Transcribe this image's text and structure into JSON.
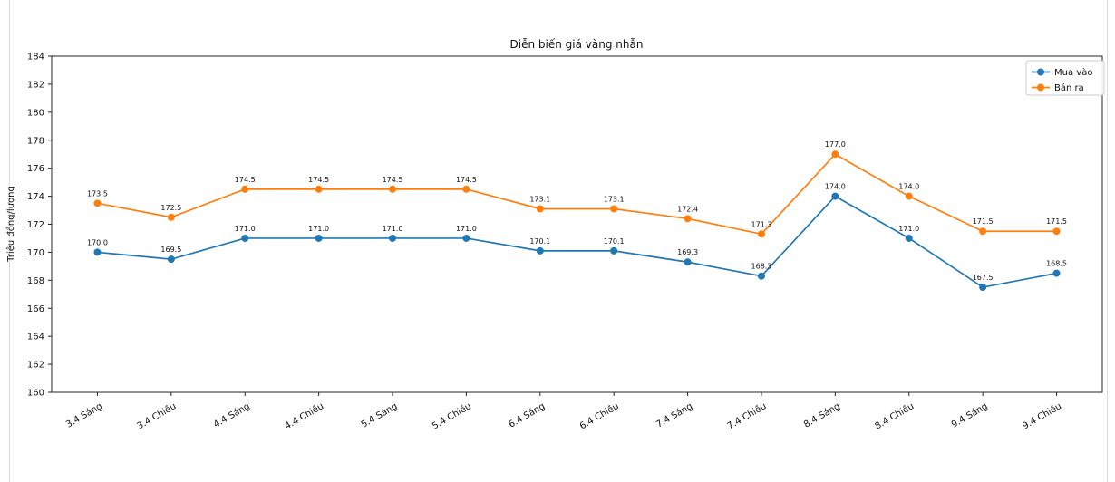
{
  "chart_data": {
    "type": "line",
    "title": "Diễn biến giá vàng nhẫn",
    "xlabel": "",
    "ylabel": "Triệu đồng/lượng",
    "categories": [
      "3.4 Sáng",
      "3.4 Chiều",
      "4.4 Sáng",
      "4.4 Chiều",
      "5.4 Sáng",
      "5.4 Chiều",
      "6.4 Sáng",
      "6.4 Chiều",
      "7.4 Sáng",
      "7.4 Chiều",
      "8.4 Sáng",
      "8.4 Chiều",
      "9.4 Sáng",
      "9.4 Chiều"
    ],
    "series": [
      {
        "name": "Mua vào",
        "color": "#1f77b4",
        "values": [
          170.0,
          169.5,
          171.0,
          171.0,
          171.0,
          171.0,
          170.1,
          170.1,
          169.3,
          168.3,
          174.0,
          171.0,
          167.5,
          168.5
        ]
      },
      {
        "name": "Bán ra",
        "color": "#ff7f0e",
        "values": [
          173.5,
          172.5,
          174.5,
          174.5,
          174.5,
          174.5,
          173.1,
          173.1,
          172.4,
          171.3,
          177.0,
          174.0,
          171.5,
          171.5
        ]
      }
    ],
    "ylim": [
      160,
      184
    ],
    "ytick_step": 2,
    "yticks": [
      "160",
      "162",
      "164",
      "166",
      "168",
      "170",
      "172",
      "174",
      "176",
      "178",
      "180",
      "182",
      "184"
    ],
    "grid": false,
    "legend_position": "upper right",
    "marker": "circle",
    "data_labels": true,
    "label_decimals": 1,
    "axis_color": "#262626",
    "legend_border_color": "#cccccc",
    "card_border_color": "#dcdcdc"
  }
}
